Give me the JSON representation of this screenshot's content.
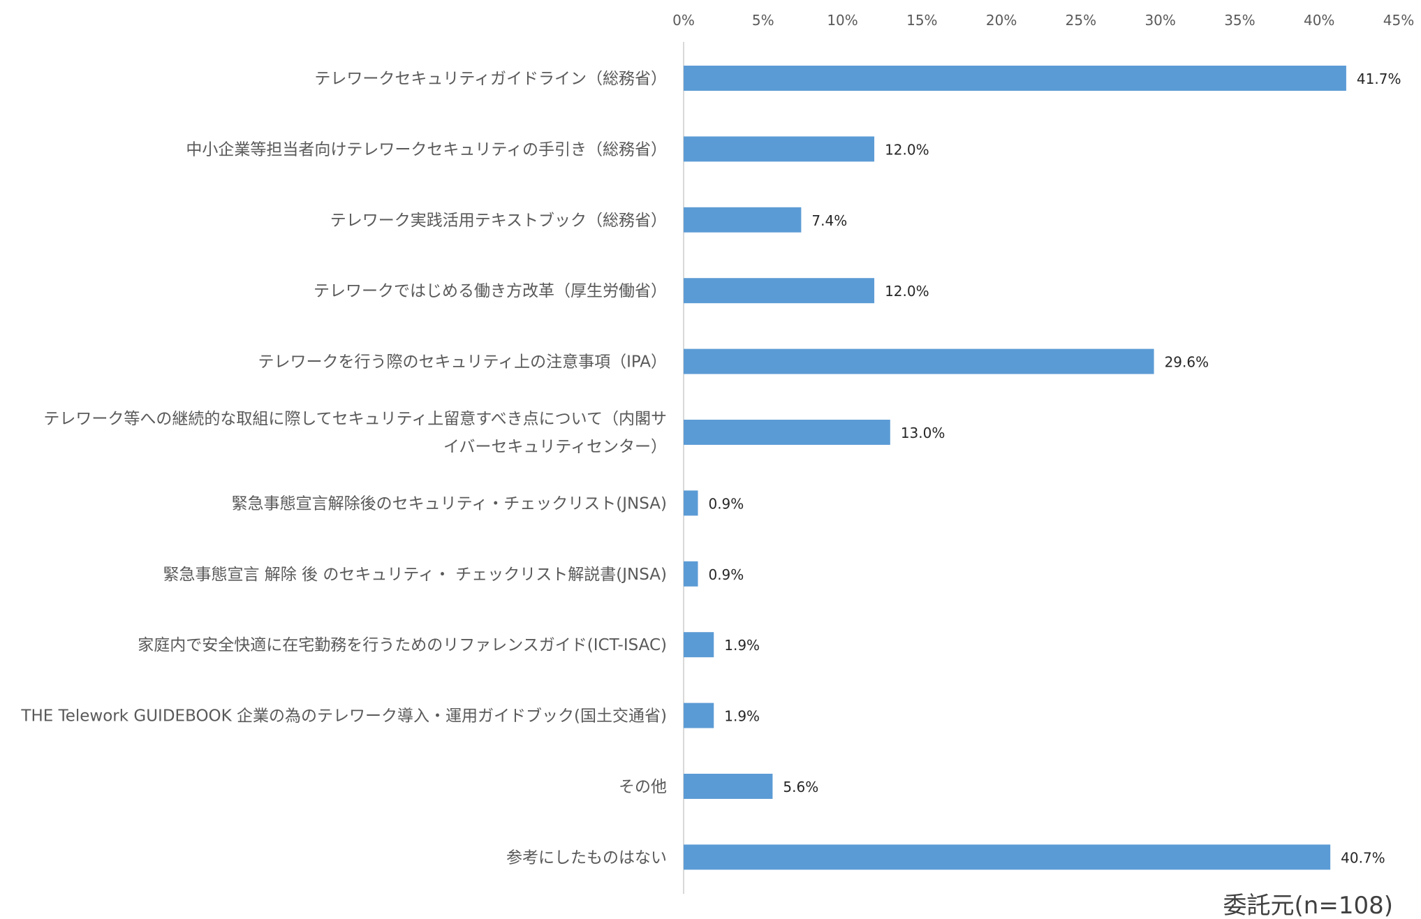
{
  "chart_data": {
    "type": "bar",
    "orientation": "horizontal",
    "categories": [
      [
        "テレワークセキュリティガイドライン（総務省）"
      ],
      [
        "中小企業等担当者向けテレワークセキュリティの手引き（総務省）"
      ],
      [
        "テレワーク実践活用テキストブック（総務省）"
      ],
      [
        "テレワークではじめる働き方改革（厚生労働省）"
      ],
      [
        "テレワークを行う際のセキュリティ上の注意事項（IPA）"
      ],
      [
        "テレワーク等への継続的な取組に際してセキュリティ上留意すべき点について（内閣サ",
        "イバーセキュリティセンター）"
      ],
      [
        "緊急事態宣言解除後のセキュリティ・チェックリスト(JNSA)"
      ],
      [
        "緊急事態宣言 解除 後 のセキュリティ・ チェックリスト解説書(JNSA)"
      ],
      [
        "家庭内で安全快適に在宅勤務を行うためのリファレンスガイド(ICT-ISAC)"
      ],
      [
        "THE Telework GUIDEBOOK 企業の為のテレワーク導入・運用ガイドブック(国土交通省)"
      ],
      [
        "その他"
      ],
      [
        "参考にしたものはない"
      ]
    ],
    "values": [
      41.7,
      12.0,
      7.4,
      12.0,
      29.6,
      13.0,
      0.9,
      0.9,
      1.9,
      1.9,
      5.6,
      40.7
    ],
    "value_labels": [
      "41.7%",
      "12.0%",
      "7.4%",
      "12.0%",
      "29.6%",
      "13.0%",
      "0.9%",
      "0.9%",
      "1.9%",
      "1.9%",
      "5.6%",
      "40.7%"
    ],
    "x_ticks": [
      "0%",
      "5%",
      "10%",
      "15%",
      "20%",
      "25%",
      "30%",
      "35%",
      "40%",
      "45%"
    ],
    "xlim": [
      0,
      45
    ],
    "x_axis_position": "top",
    "grid": false,
    "bar_color": "#5B9BD5",
    "note": "委託元(n=108)"
  }
}
